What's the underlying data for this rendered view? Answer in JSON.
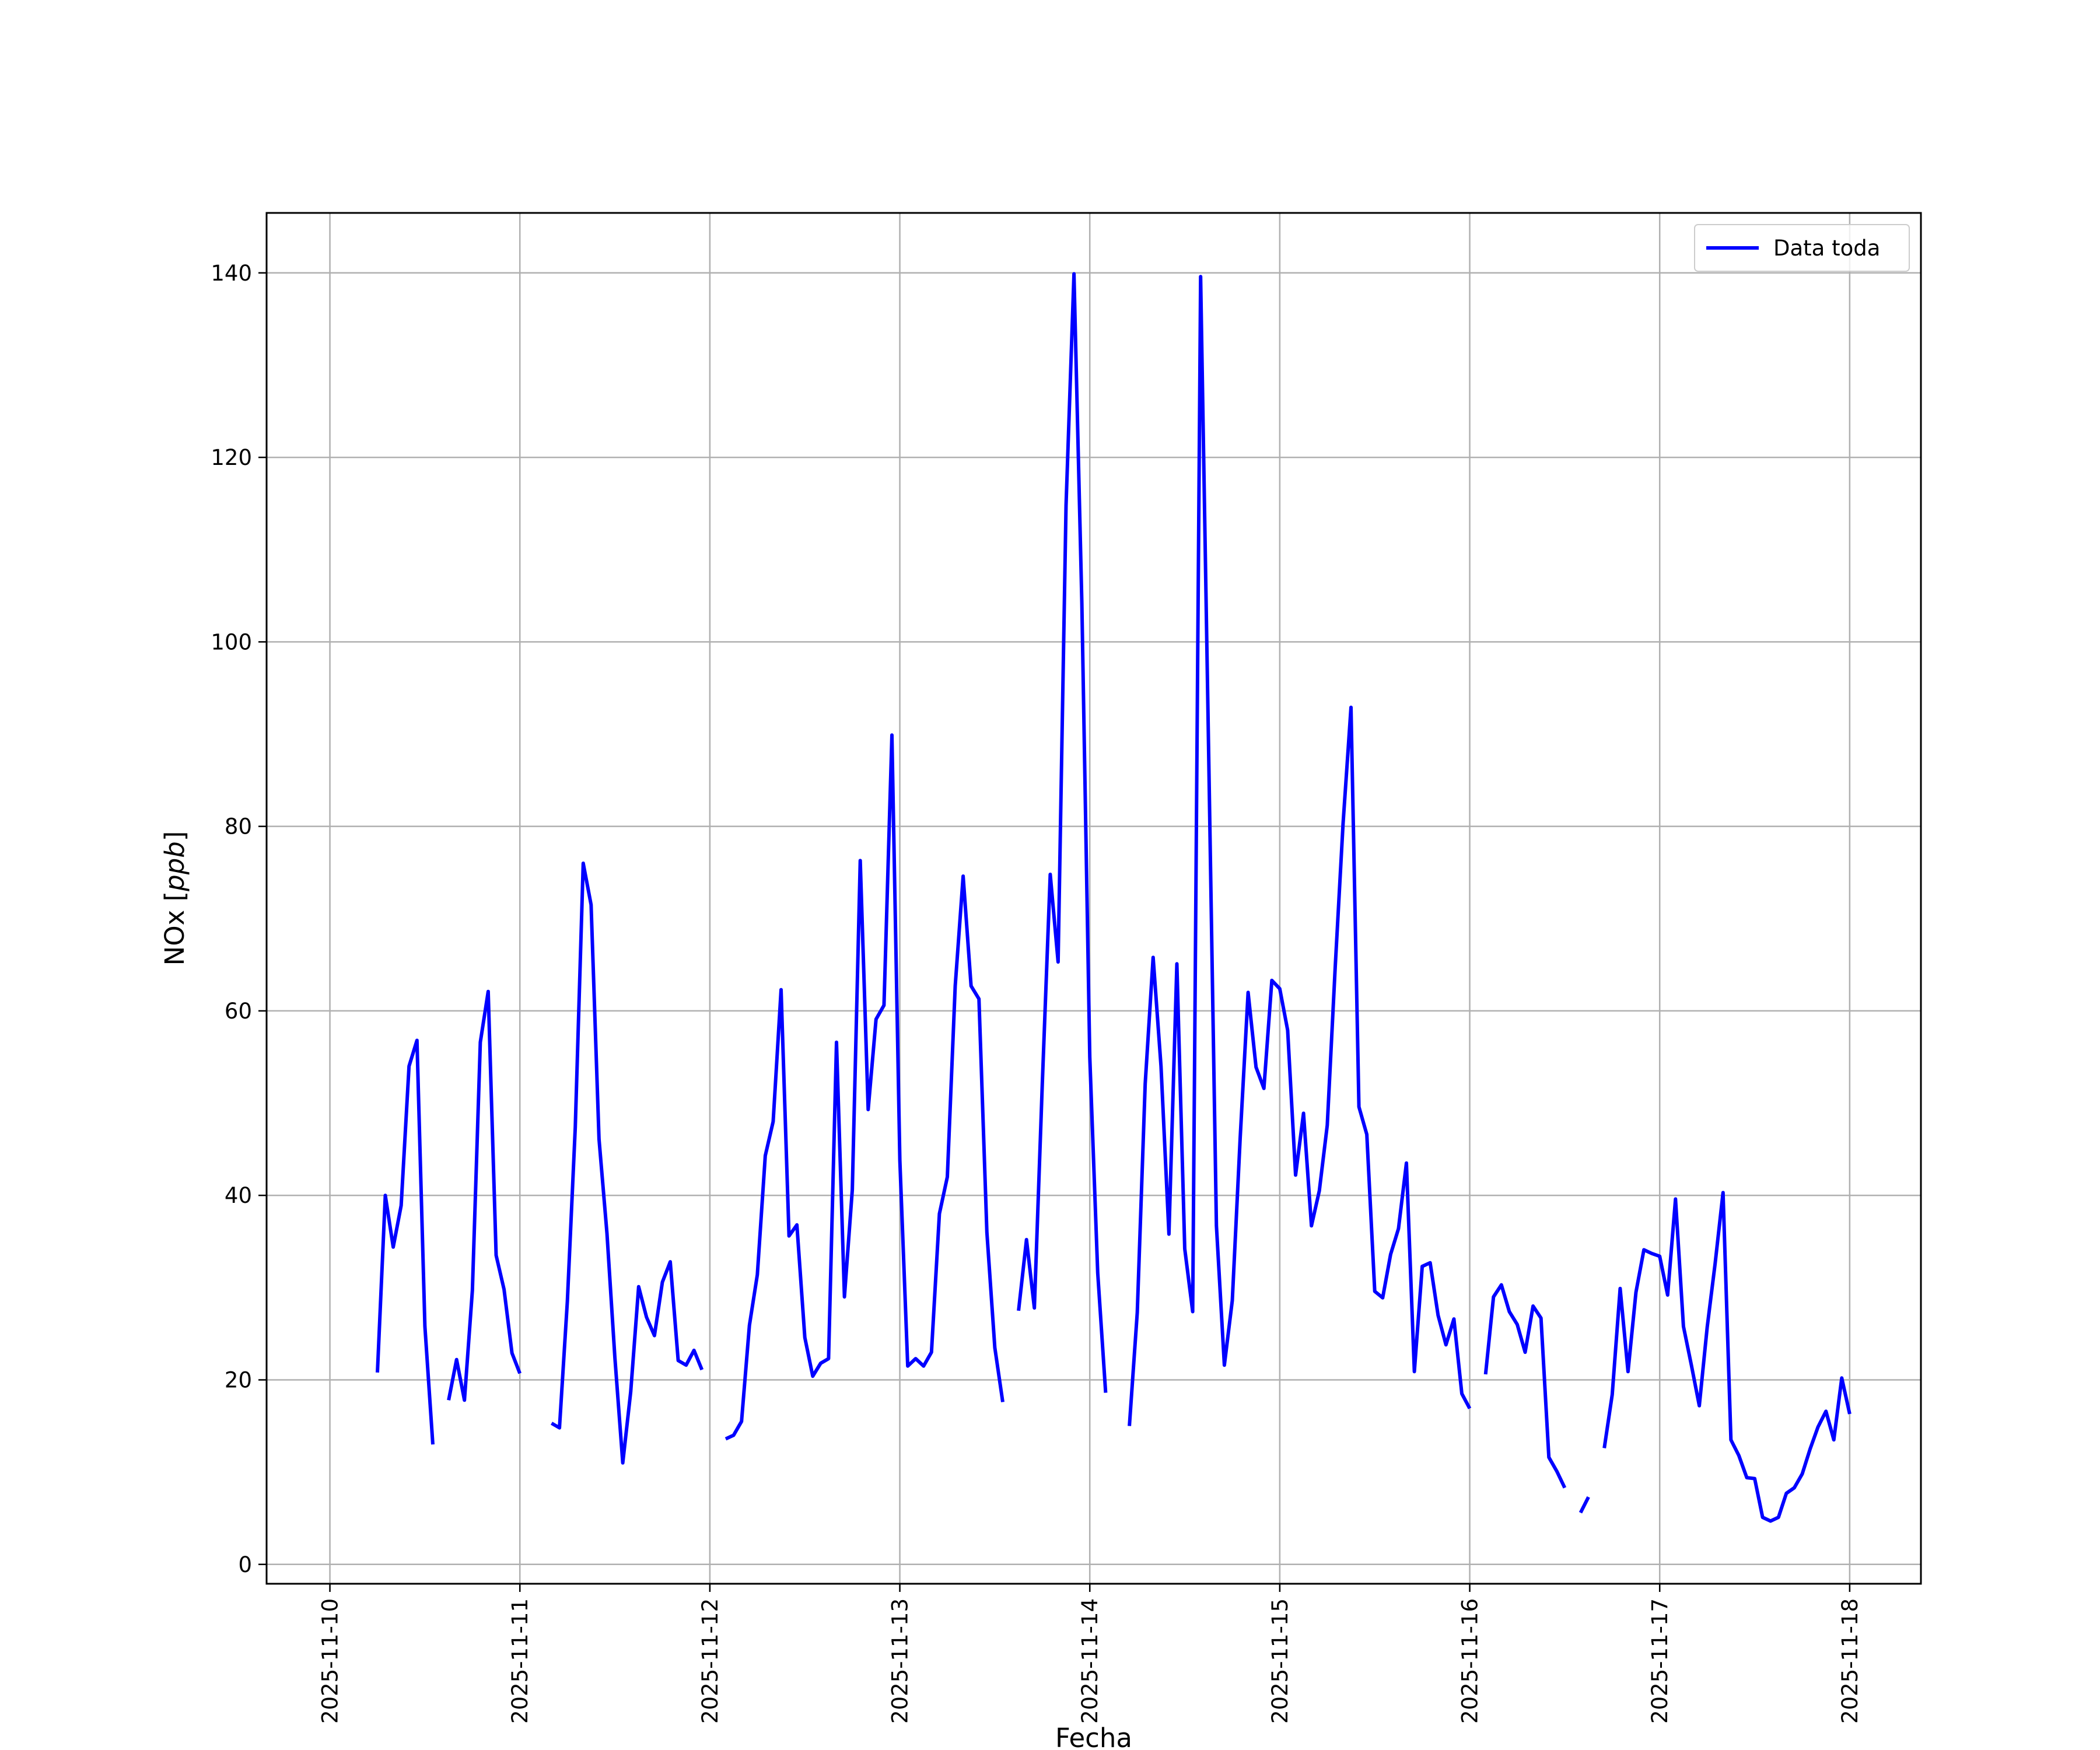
{
  "chart_data": {
    "type": "line",
    "title": "",
    "xlabel": "Fecha",
    "ylabel": "NOx [ppb]",
    "ylabel_main": "NOx [",
    "ylabel_unit": "ppb",
    "ylabel_close": "]",
    "x_ticks": [
      "2025-11-10",
      "2025-11-11",
      "2025-11-12",
      "2025-11-13",
      "2025-11-14",
      "2025-11-15",
      "2025-11-16",
      "2025-11-17",
      "2025-11-18"
    ],
    "y_ticks": [
      0,
      20,
      40,
      60,
      80,
      100,
      120,
      140
    ],
    "xlim": [
      "2025-11-09T16:00",
      "2025-11-18T09:00"
    ],
    "ylim": [
      -2.1,
      146.5
    ],
    "grid": true,
    "legend_position": "top-right",
    "color": "#0000ff",
    "series": [
      {
        "name": "Data toda",
        "segments": [
          [
            [
              "2025-11-10T06:00",
              20.8
            ],
            [
              "2025-11-10T07:00",
              40.0
            ],
            [
              "2025-11-10T08:00",
              34.4
            ],
            [
              "2025-11-10T09:00",
              38.9
            ],
            [
              "2025-11-10T10:00",
              54.0
            ],
            [
              "2025-11-10T11:00",
              56.8
            ],
            [
              "2025-11-10T12:00",
              25.8
            ],
            [
              "2025-11-10T13:00",
              13.0
            ]
          ],
          [
            [
              "2025-11-10T15:00",
              17.8
            ],
            [
              "2025-11-10T16:00",
              22.2
            ],
            [
              "2025-11-10T17:00",
              17.8
            ],
            [
              "2025-11-10T18:00",
              29.7
            ],
            [
              "2025-11-10T19:00",
              56.6
            ],
            [
              "2025-11-10T20:00",
              62.1
            ],
            [
              "2025-11-10T21:00",
              33.5
            ],
            [
              "2025-11-10T22:00",
              29.8
            ],
            [
              "2025-11-10T23:00",
              22.9
            ],
            [
              "2025-11-11T00:00",
              20.7
            ]
          ],
          [
            [
              "2025-11-11T04:00",
              15.3
            ],
            [
              "2025-11-11T05:00",
              14.8
            ],
            [
              "2025-11-11T06:00",
              28.5
            ],
            [
              "2025-11-11T07:00",
              47.4
            ],
            [
              "2025-11-11T08:00",
              76.0
            ],
            [
              "2025-11-11T09:00",
              71.5
            ],
            [
              "2025-11-11T10:00",
              46.1
            ],
            [
              "2025-11-11T11:00",
              35.9
            ],
            [
              "2025-11-11T12:00",
              22.4
            ],
            [
              "2025-11-11T13:00",
              11.0
            ],
            [
              "2025-11-11T14:00",
              18.7
            ],
            [
              "2025-11-11T15:00",
              30.1
            ],
            [
              "2025-11-11T16:00",
              26.8
            ],
            [
              "2025-11-11T17:00",
              24.8
            ],
            [
              "2025-11-11T18:00",
              30.6
            ],
            [
              "2025-11-11T19:00",
              32.8
            ],
            [
              "2025-11-11T20:00",
              22.1
            ],
            [
              "2025-11-11T21:00",
              21.6
            ],
            [
              "2025-11-11T22:00",
              23.2
            ],
            [
              "2025-11-11T23:00",
              21.1
            ]
          ],
          [
            [
              "2025-11-12T02:00",
              13.6
            ],
            [
              "2025-11-12T03:00",
              14.0
            ],
            [
              "2025-11-12T04:00",
              15.5
            ],
            [
              "2025-11-12T05:00",
              25.9
            ],
            [
              "2025-11-12T06:00",
              31.4
            ],
            [
              "2025-11-12T07:00",
              44.3
            ],
            [
              "2025-11-12T08:00",
              48.0
            ],
            [
              "2025-11-12T09:00",
              62.3
            ],
            [
              "2025-11-12T10:00",
              35.6
            ],
            [
              "2025-11-12T11:00",
              36.8
            ],
            [
              "2025-11-12T12:00",
              24.6
            ],
            [
              "2025-11-12T13:00",
              20.4
            ],
            [
              "2025-11-12T14:00",
              21.8
            ],
            [
              "2025-11-12T15:00",
              22.3
            ],
            [
              "2025-11-12T16:00",
              56.6
            ],
            [
              "2025-11-12T17:00",
              29.0
            ],
            [
              "2025-11-12T18:00",
              40.6
            ],
            [
              "2025-11-12T19:00",
              76.3
            ],
            [
              "2025-11-12T20:00",
              49.3
            ],
            [
              "2025-11-12T21:00",
              59.1
            ],
            [
              "2025-11-12T22:00",
              60.6
            ],
            [
              "2025-11-12T23:00",
              89.9
            ],
            [
              "2025-11-13T00:00",
              43.8
            ],
            [
              "2025-11-13T01:00",
              21.5
            ],
            [
              "2025-11-13T02:00",
              22.3
            ],
            [
              "2025-11-13T03:00",
              21.5
            ],
            [
              "2025-11-13T04:00",
              23.0
            ],
            [
              "2025-11-13T05:00",
              38.0
            ],
            [
              "2025-11-13T06:00",
              42.0
            ],
            [
              "2025-11-13T07:00",
              62.7
            ],
            [
              "2025-11-13T08:00",
              74.6
            ],
            [
              "2025-11-13T09:00",
              62.7
            ],
            [
              "2025-11-13T10:00",
              61.3
            ],
            [
              "2025-11-13T11:00",
              36.0
            ],
            [
              "2025-11-13T12:00",
              23.5
            ],
            [
              "2025-11-13T13:00",
              17.6
            ]
          ],
          [
            [
              "2025-11-13T15:00",
              27.5
            ],
            [
              "2025-11-13T16:00",
              35.2
            ],
            [
              "2025-11-13T17:00",
              27.8
            ],
            [
              "2025-11-13T18:00",
              52.1
            ],
            [
              "2025-11-13T19:00",
              74.8
            ],
            [
              "2025-11-13T20:00",
              65.3
            ],
            [
              "2025-11-13T21:00",
              114.8
            ],
            [
              "2025-11-13T22:00",
              139.9
            ],
            [
              "2025-11-13T23:00",
              104.2
            ],
            [
              "2025-11-14T00:00",
              55.0
            ],
            [
              "2025-11-14T01:00",
              31.6
            ],
            [
              "2025-11-14T02:00",
              18.6
            ]
          ],
          [
            [
              "2025-11-14T05:00",
              15.0
            ],
            [
              "2025-11-14T06:00",
              27.3
            ],
            [
              "2025-11-14T07:00",
              52.1
            ],
            [
              "2025-11-14T08:00",
              65.8
            ],
            [
              "2025-11-14T09:00",
              54.0
            ],
            [
              "2025-11-14T10:00",
              35.8
            ],
            [
              "2025-11-14T11:00",
              65.1
            ],
            [
              "2025-11-14T12:00",
              34.2
            ],
            [
              "2025-11-14T13:00",
              27.4
            ],
            [
              "2025-11-14T14:00",
              139.6
            ],
            [
              "2025-11-14T15:00",
              88.7
            ],
            [
              "2025-11-14T16:00",
              36.7
            ],
            [
              "2025-11-14T17:00",
              21.6
            ],
            [
              "2025-11-14T18:00",
              28.6
            ],
            [
              "2025-11-14T19:00",
              46.2
            ],
            [
              "2025-11-14T20:00",
              62.0
            ],
            [
              "2025-11-14T21:00",
              53.9
            ],
            [
              "2025-11-14T22:00",
              51.6
            ],
            [
              "2025-11-14T23:00",
              63.3
            ],
            [
              "2025-11-15T00:00",
              62.4
            ],
            [
              "2025-11-15T01:00",
              57.9
            ],
            [
              "2025-11-15T02:00",
              42.2
            ],
            [
              "2025-11-15T03:00",
              48.9
            ],
            [
              "2025-11-15T04:00",
              36.7
            ],
            [
              "2025-11-15T05:00",
              40.5
            ],
            [
              "2025-11-15T06:00",
              47.6
            ],
            [
              "2025-11-15T07:00",
              64.7
            ],
            [
              "2025-11-15T08:00",
              80.3
            ],
            [
              "2025-11-15T09:00",
              92.9
            ],
            [
              "2025-11-15T10:00",
              49.6
            ],
            [
              "2025-11-15T11:00",
              46.6
            ],
            [
              "2025-11-15T12:00",
              29.6
            ],
            [
              "2025-11-15T13:00",
              28.9
            ],
            [
              "2025-11-15T14:00",
              33.6
            ],
            [
              "2025-11-15T15:00",
              36.4
            ],
            [
              "2025-11-15T16:00",
              43.5
            ],
            [
              "2025-11-15T17:00",
              20.9
            ],
            [
              "2025-11-15T18:00",
              32.3
            ],
            [
              "2025-11-15T19:00",
              32.7
            ],
            [
              "2025-11-15T20:00",
              27.0
            ],
            [
              "2025-11-15T21:00",
              23.8
            ],
            [
              "2025-11-15T22:00",
              26.6
            ],
            [
              "2025-11-15T23:00",
              18.5
            ],
            [
              "2025-11-16T00:00",
              16.9
            ]
          ],
          [
            [
              "2025-11-16T02:00",
              20.6
            ],
            [
              "2025-11-16T03:00",
              29.0
            ],
            [
              "2025-11-16T04:00",
              30.3
            ],
            [
              "2025-11-16T05:00",
              27.4
            ],
            [
              "2025-11-16T06:00",
              26.0
            ],
            [
              "2025-11-16T07:00",
              23.0
            ],
            [
              "2025-11-16T08:00",
              28.0
            ],
            [
              "2025-11-16T09:00",
              26.7
            ],
            [
              "2025-11-16T10:00",
              11.6
            ],
            [
              "2025-11-16T11:00",
              10.1
            ],
            [
              "2025-11-16T12:00",
              8.3
            ]
          ],
          [
            [
              "2025-11-16T14:00",
              5.6
            ],
            [
              "2025-11-16T15:00",
              7.3
            ]
          ],
          [
            [
              "2025-11-16T17:00",
              12.6
            ],
            [
              "2025-11-16T18:00",
              18.4
            ],
            [
              "2025-11-16T19:00",
              29.9
            ],
            [
              "2025-11-16T20:00",
              20.9
            ],
            [
              "2025-11-16T21:00",
              29.5
            ],
            [
              "2025-11-16T22:00",
              34.1
            ],
            [
              "2025-11-16T23:00",
              33.7
            ],
            [
              "2025-11-17T00:00",
              33.4
            ],
            [
              "2025-11-17T01:00",
              29.2
            ],
            [
              "2025-11-17T02:00",
              39.6
            ],
            [
              "2025-11-17T03:00",
              25.8
            ],
            [
              "2025-11-17T04:00",
              21.6
            ],
            [
              "2025-11-17T05:00",
              17.2
            ],
            [
              "2025-11-17T06:00",
              25.7
            ],
            [
              "2025-11-17T07:00",
              32.6
            ],
            [
              "2025-11-17T08:00",
              40.3
            ],
            [
              "2025-11-17T09:00",
              13.5
            ],
            [
              "2025-11-17T10:00",
              11.8
            ],
            [
              "2025-11-17T11:00",
              9.4
            ],
            [
              "2025-11-17T12:00",
              9.3
            ],
            [
              "2025-11-17T13:00",
              5.1
            ],
            [
              "2025-11-17T14:00",
              4.7
            ],
            [
              "2025-11-17T15:00",
              5.1
            ],
            [
              "2025-11-17T16:00",
              7.7
            ],
            [
              "2025-11-17T17:00",
              8.3
            ],
            [
              "2025-11-17T18:00",
              9.8
            ],
            [
              "2025-11-17T19:00",
              12.5
            ],
            [
              "2025-11-17T20:00",
              14.9
            ],
            [
              "2025-11-17T21:00",
              16.6
            ],
            [
              "2025-11-17T22:00",
              13.5
            ],
            [
              "2025-11-17T23:00",
              20.2
            ],
            [
              "2025-11-18T00:00",
              16.3
            ]
          ]
        ]
      }
    ]
  }
}
